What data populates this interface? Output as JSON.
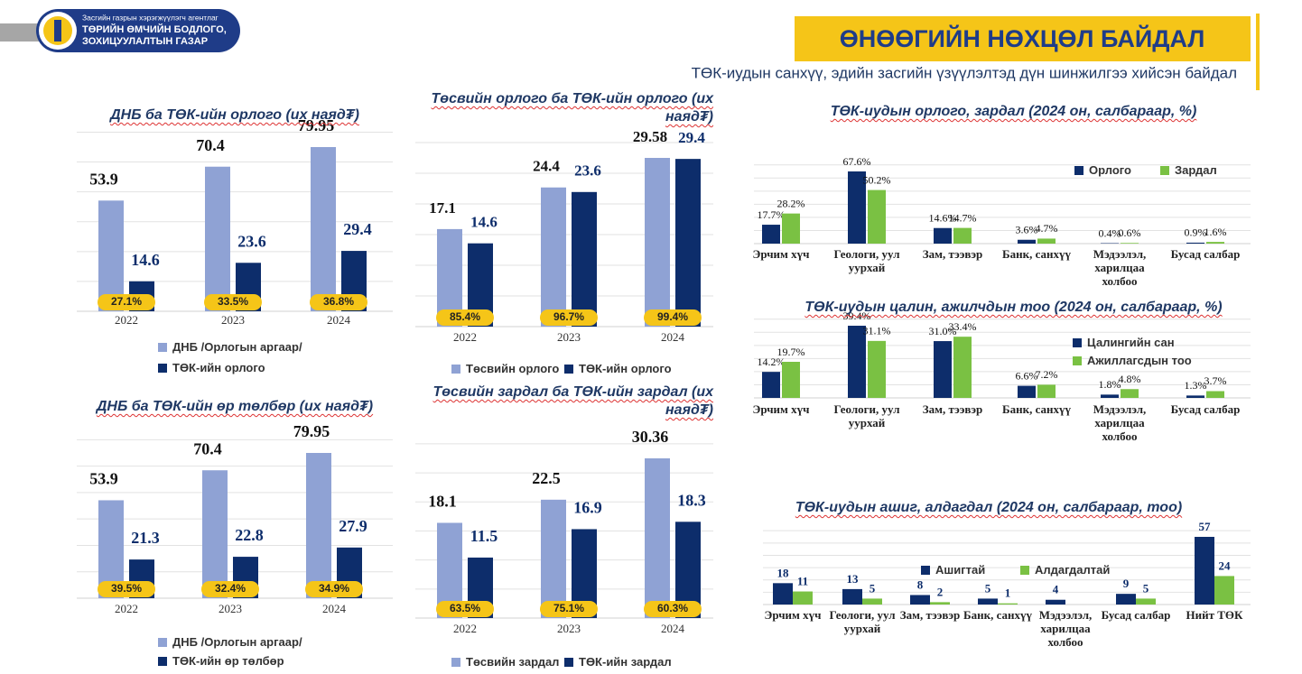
{
  "header": {
    "agency": "Засгийн газрын хэрэгжүүлэгч агентлаг",
    "org_line1": "ТӨРИЙН ӨМЧИЙН БОДЛОГО,",
    "org_line2": "ЗОХИЦУУЛАЛТЫН ГАЗАР",
    "title": "ӨНӨӨГИЙН НӨХЦӨЛ БАЙДАЛ",
    "subtitle": "ТӨК-иудын санхүү, эдийн засгийн үзүүлэлтэд дүн шинжилгээ хийсэн байдал"
  },
  "chart_data": [
    {
      "type": "bar",
      "title": "ДНБ ба ТӨК-ийн орлого (их наяд₮)",
      "categories": [
        "2022",
        "2023",
        "2024"
      ],
      "series": [
        {
          "name": "ДНБ /Орлогын аргаар/",
          "color": "#8fa2d4",
          "values": [
            53.9,
            70.4,
            79.95
          ]
        },
        {
          "name": "ТӨК-ийн орлого",
          "color": "#0d2d6b",
          "values": [
            14.6,
            23.6,
            29.4
          ]
        }
      ],
      "shares": {
        "values": [
          27.1,
          33.5,
          36.8
        ],
        "value_labels": [
          "27.1%",
          "33.5%",
          "36.8%"
        ],
        "color": "#f5c518"
      }
    },
    {
      "type": "bar",
      "title": "Төсвийн орлого ба ТӨК-ийн орлого (их наяд₮)",
      "categories": [
        "2022",
        "2023",
        "2024"
      ],
      "series": [
        {
          "name": "Төсвийн орлого",
          "color": "#8fa2d4",
          "values": [
            17.1,
            24.4,
            29.58
          ]
        },
        {
          "name": "ТӨК-ийн орлого",
          "color": "#0d2d6b",
          "values": [
            14.6,
            23.6,
            29.4
          ]
        }
      ],
      "shares": {
        "values": [
          85.4,
          96.7,
          99.4
        ],
        "value_labels": [
          "85.4%",
          "96.7%",
          "99.4%"
        ],
        "color": "#f5c518"
      }
    },
    {
      "type": "bar",
      "title": "ДНБ ба ТӨК-ийн өр төлбөр (их наяд₮)",
      "categories": [
        "2022",
        "2023",
        "2024"
      ],
      "series": [
        {
          "name": "ДНБ /Орлогын аргаар/",
          "color": "#8fa2d4",
          "values": [
            53.9,
            70.4,
            79.95
          ]
        },
        {
          "name": "ТӨК-ийн өр төлбөр",
          "color": "#0d2d6b",
          "values": [
            21.3,
            22.8,
            27.9
          ]
        }
      ],
      "shares": {
        "values": [
          39.5,
          32.4,
          34.9
        ],
        "value_labels": [
          "39.5%",
          "32.4%",
          "34.9%"
        ],
        "color": "#f5c518"
      }
    },
    {
      "type": "bar",
      "title": "Төсвийн зардал ба ТӨК-ийн зардал (их наяд₮)",
      "categories": [
        "2022",
        "2023",
        "2024"
      ],
      "series": [
        {
          "name": "Төсвийн зардал",
          "color": "#8fa2d4",
          "values": [
            18.1,
            22.5,
            30.36
          ]
        },
        {
          "name": "ТӨК-ийн зардал",
          "color": "#0d2d6b",
          "values": [
            11.5,
            16.9,
            18.3
          ]
        }
      ],
      "shares": {
        "values": [
          63.5,
          75.1,
          60.3
        ],
        "value_labels": [
          "63.5%",
          "75.1%",
          "60.3%"
        ],
        "color": "#f5c518"
      }
    },
    {
      "type": "bar",
      "title": "ТӨК-иудын орлого, зардал (2024 он, салбараар, %)",
      "categories": [
        "Эрчим хүч",
        "Геологи, уул уурхай",
        "Зам, тээвэр",
        "Банк, санхүү",
        "Мэдээлэл, харилцаа холбоо",
        "Бусад салбар"
      ],
      "series": [
        {
          "name": "Орлого",
          "color": "#0d2d6b",
          "values": [
            17.7,
            67.6,
            14.6,
            3.6,
            0.4,
            0.9
          ],
          "value_labels": [
            "17.7%",
            "67.6%",
            "14.6%",
            "3.6%",
            "0.4%",
            "0.9%"
          ]
        },
        {
          "name": "Зардал",
          "color": "#7ac143",
          "values": [
            28.2,
            50.2,
            14.7,
            4.7,
            0.6,
            1.6
          ],
          "value_labels": [
            "28.2%",
            "50.2%",
            "14.7%",
            "4.7%",
            "0.6%",
            "1.6%"
          ]
        }
      ]
    },
    {
      "type": "bar",
      "title": "ТӨК-иудын цалин, ажилчдын тоо (2024 он, салбараар, %)",
      "categories": [
        "Эрчим хүч",
        "Геологи, уул уурхай",
        "Зам, тээвэр",
        "Банк, санхүү",
        "Мэдээлэл, харилцаа холбоо",
        "Бусад салбар"
      ],
      "series": [
        {
          "name": "Цалингийн сан",
          "color": "#0d2d6b",
          "values": [
            14.2,
            39.4,
            31.0,
            6.6,
            1.8,
            1.3
          ],
          "value_labels": [
            "14.2%",
            "39.4%",
            "31.0%",
            "6.6%",
            "1.8%",
            "1.3%"
          ]
        },
        {
          "name": "Ажиллагсдын тоо",
          "color": "#7ac143",
          "values": [
            19.7,
            31.1,
            33.4,
            7.2,
            4.8,
            3.7
          ],
          "value_labels": [
            "19.7%",
            "31.1%",
            "33.4%",
            "7.2%",
            "4.8%",
            "3.7%"
          ]
        }
      ]
    },
    {
      "type": "bar",
      "title": "ТӨК-иудын ашиг, алдагдал (2024 он, салбараар, тоо)",
      "categories": [
        "Эрчим хүч",
        "Геологи, уул уурхай",
        "Зам, тээвэр",
        "Банк, санхүү",
        "Мэдээлэл, харилцаа холбоо",
        "Бусад салбар",
        "Нийт ТӨК"
      ],
      "series": [
        {
          "name": "Ашигтай",
          "color": "#0d2d6b",
          "values": [
            18,
            13,
            8,
            5,
            4,
            9,
            57
          ]
        },
        {
          "name": "Алдагдалтай",
          "color": "#7ac143",
          "values": [
            11,
            5,
            2,
            1,
            null,
            5,
            24
          ]
        }
      ]
    }
  ]
}
